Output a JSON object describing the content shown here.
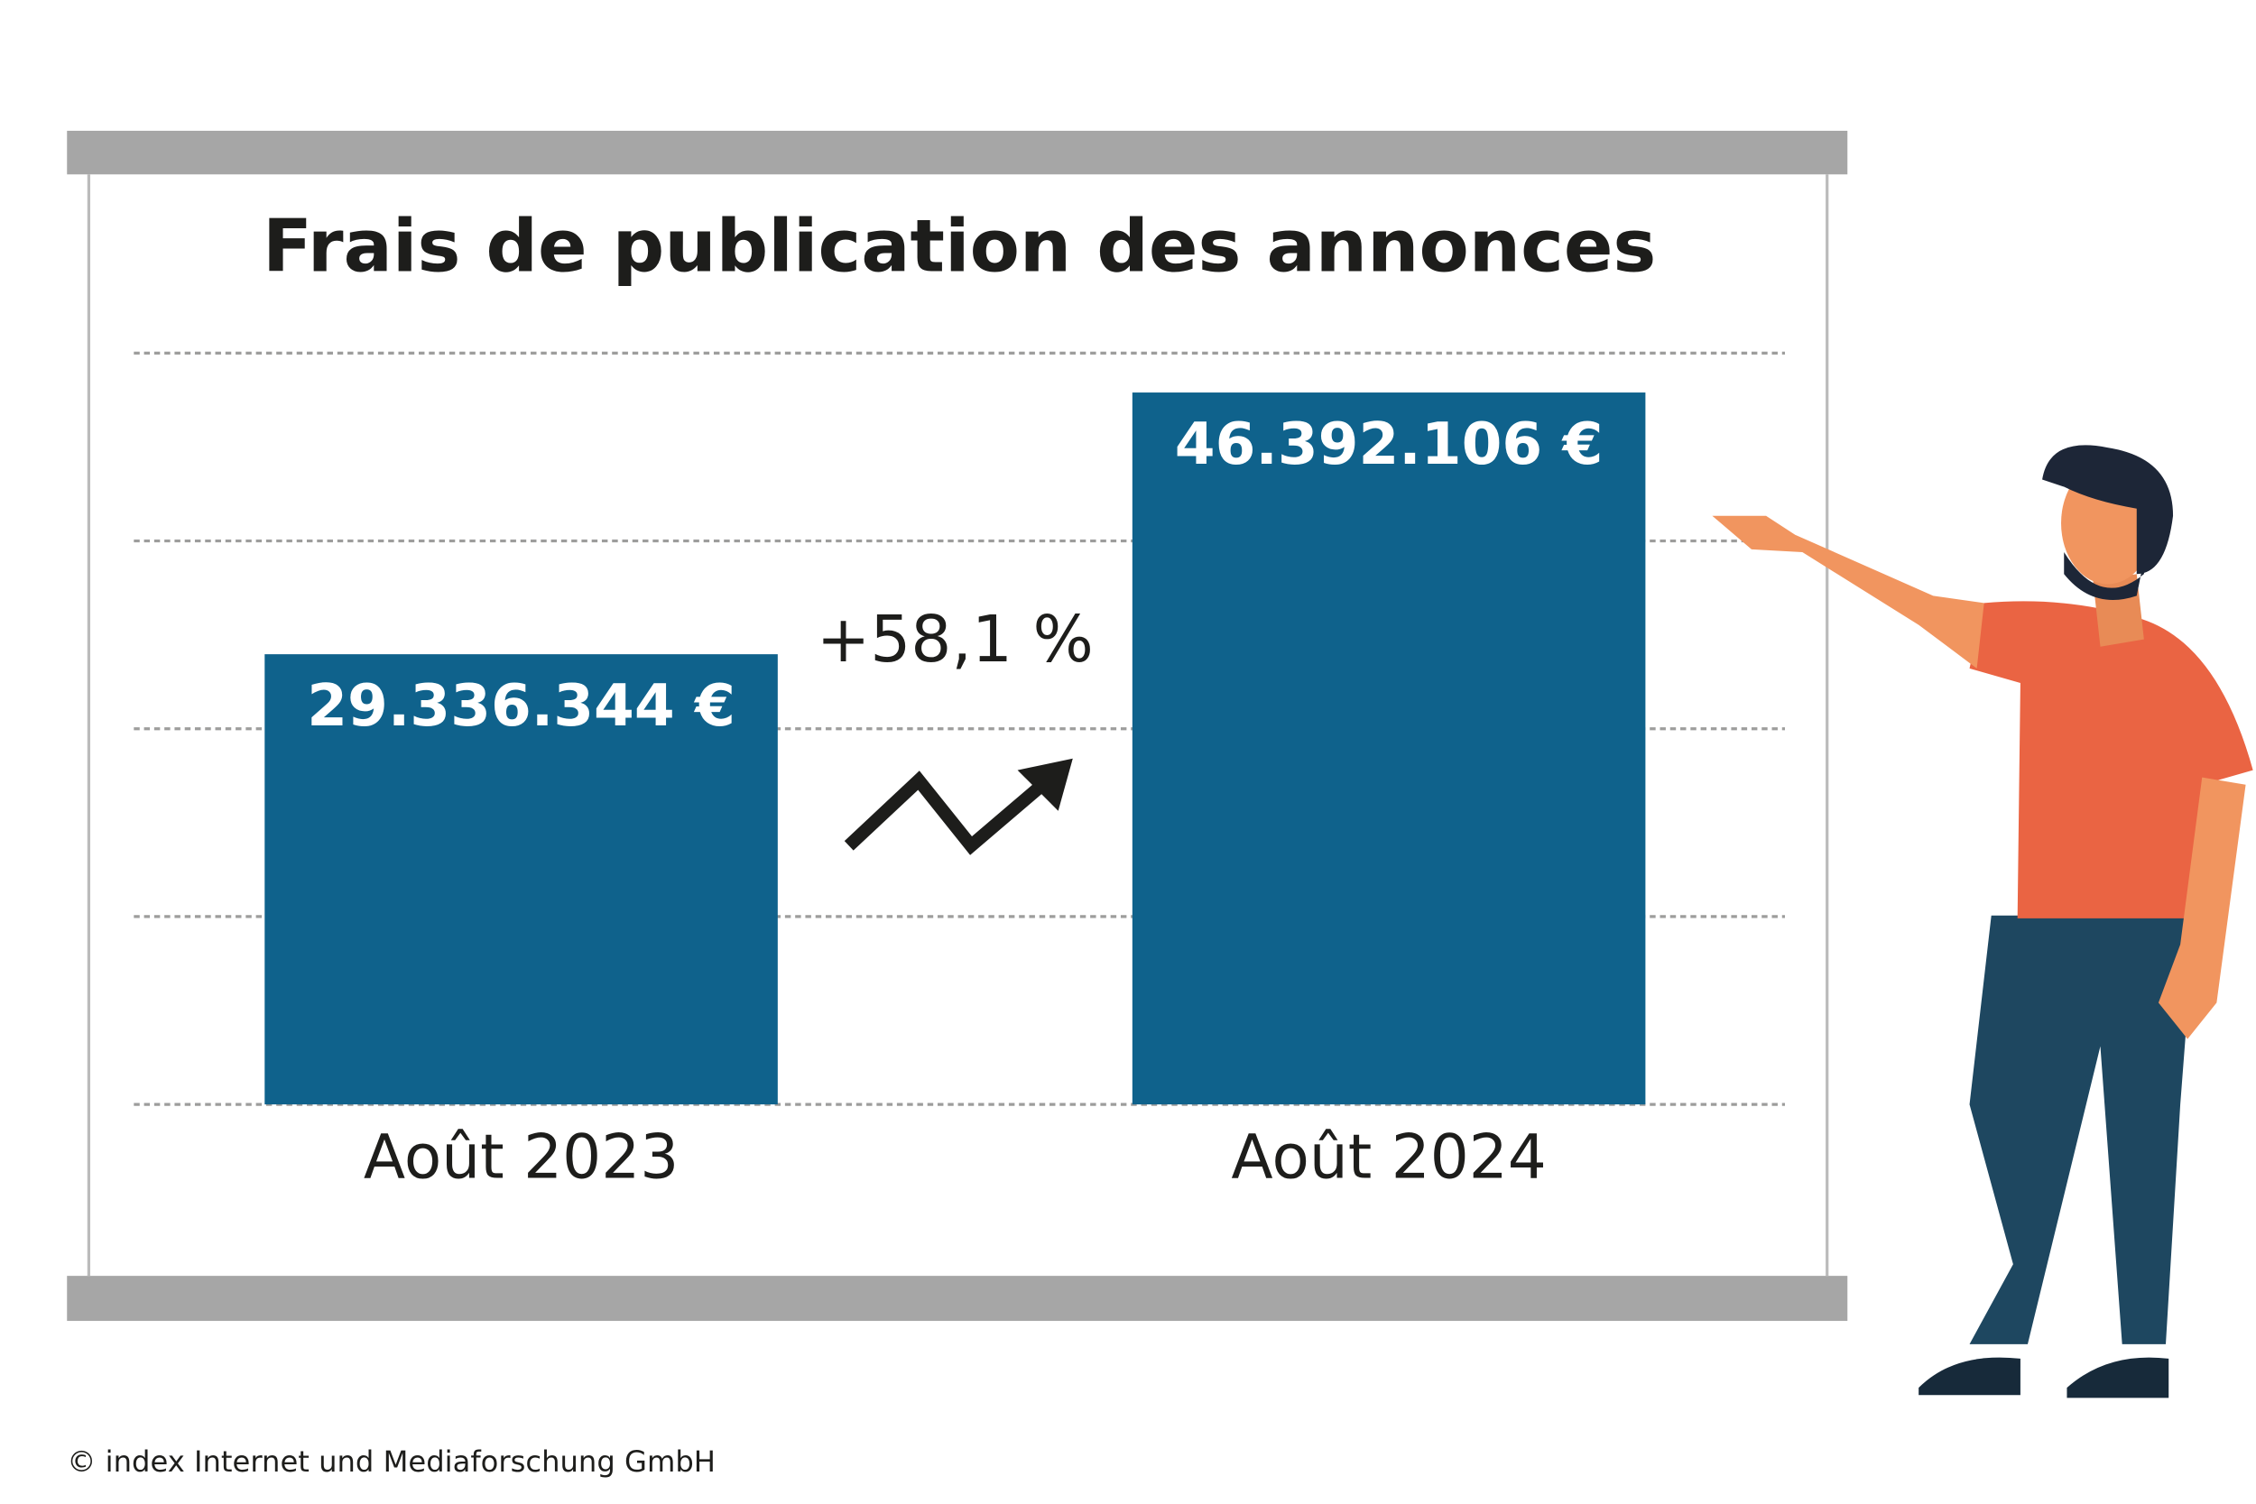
{
  "chart_data": {
    "type": "bar",
    "title": "Frais de publication des annonces",
    "categories": [
      "Août 2023",
      "Août 2024"
    ],
    "values": [
      29336344,
      46392106
    ],
    "value_labels": [
      "29.336.344 €",
      "46.392.106 €"
    ],
    "color": "#0f628c",
    "ylim": [
      0,
      48960000
    ],
    "yticks": [
      0,
      12240000,
      24480000,
      36720000,
      48960000
    ],
    "grid": true,
    "annotation": "+58,1 %",
    "footer": "© index Internet und Mediaforschung GmbH"
  }
}
